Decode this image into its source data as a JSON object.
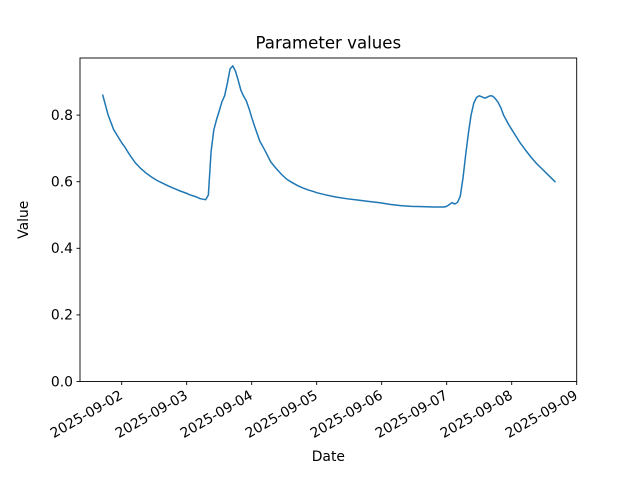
{
  "figure": {
    "background": "#ffffff",
    "text_color": "#000000",
    "spine_color": "#000000"
  },
  "chart_data": {
    "type": "line",
    "title": "Parameter values",
    "xlabel": "Date",
    "ylabel": "Value",
    "grid": false,
    "legend": null,
    "x_tick_labels": [
      "2025-09-02",
      "2025-09-03",
      "2025-09-04",
      "2025-09-05",
      "2025-09-06",
      "2025-09-07",
      "2025-09-08",
      "2025-09-09"
    ],
    "x_tick_positions_days": [
      0,
      1,
      2,
      3,
      4,
      5,
      6,
      7
    ],
    "x_tick_rotation_deg": 30,
    "y_ticks": [
      0.0,
      0.2,
      0.4,
      0.6,
      0.8
    ],
    "y_tick_labels": [
      "0.0",
      "0.2",
      "0.4",
      "0.6",
      "0.8"
    ],
    "xlim_days_from_2025_09_02": [
      -0.6415,
      7.0
    ],
    "ylim": [
      0.0,
      0.9715
    ],
    "series": [
      {
        "name": "parameter-values",
        "color": "#1f77b4",
        "line_width": 1.5,
        "start_timestamp": "2025-09-01 17:00",
        "start_day_offset_from_2025_09_02": -0.29167,
        "t_hours": [
          0,
          2,
          4,
          6,
          7,
          8,
          10,
          12,
          14,
          16,
          18,
          20,
          22,
          24,
          26,
          28,
          30,
          31,
          32,
          34,
          36,
          38,
          39,
          40,
          41,
          42,
          43,
          44,
          45,
          46,
          47,
          48,
          49,
          50,
          51,
          52,
          53,
          54,
          55,
          56,
          58,
          60,
          62,
          64,
          66,
          68,
          70,
          72,
          74,
          76,
          78,
          79,
          82,
          86,
          90,
          94,
          98,
          102,
          103,
          106,
          110,
          114,
          118,
          122,
          126,
          127,
          129,
          130,
          131,
          132,
          133,
          134,
          135,
          136,
          137,
          138,
          139,
          140,
          141,
          142,
          143,
          144,
          145,
          146,
          147,
          148,
          149,
          150,
          151,
          152,
          154,
          156,
          158,
          160,
          162,
          164,
          166,
          167
        ],
        "values": [
          0.86,
          0.8,
          0.757,
          0.73,
          0.717,
          0.706,
          0.68,
          0.657,
          0.64,
          0.626,
          0.614,
          0.604,
          0.596,
          0.588,
          0.581,
          0.574,
          0.568,
          0.565,
          0.561,
          0.556,
          0.549,
          0.546,
          0.56,
          0.69,
          0.755,
          0.786,
          0.812,
          0.84,
          0.858,
          0.895,
          0.938,
          0.948,
          0.932,
          0.905,
          0.875,
          0.857,
          0.843,
          0.82,
          0.793,
          0.768,
          0.722,
          0.692,
          0.66,
          0.64,
          0.622,
          0.607,
          0.597,
          0.588,
          0.581,
          0.575,
          0.57,
          0.567,
          0.561,
          0.554,
          0.549,
          0.545,
          0.541,
          0.537,
          0.536,
          0.532,
          0.528,
          0.526,
          0.525,
          0.524,
          0.524,
          0.526,
          0.537,
          0.533,
          0.538,
          0.556,
          0.61,
          0.68,
          0.745,
          0.8,
          0.836,
          0.853,
          0.858,
          0.855,
          0.851,
          0.854,
          0.858,
          0.857,
          0.849,
          0.838,
          0.822,
          0.8,
          0.785,
          0.77,
          0.757,
          0.744,
          0.718,
          0.696,
          0.675,
          0.656,
          0.64,
          0.624,
          0.608,
          0.6
        ]
      }
    ]
  }
}
